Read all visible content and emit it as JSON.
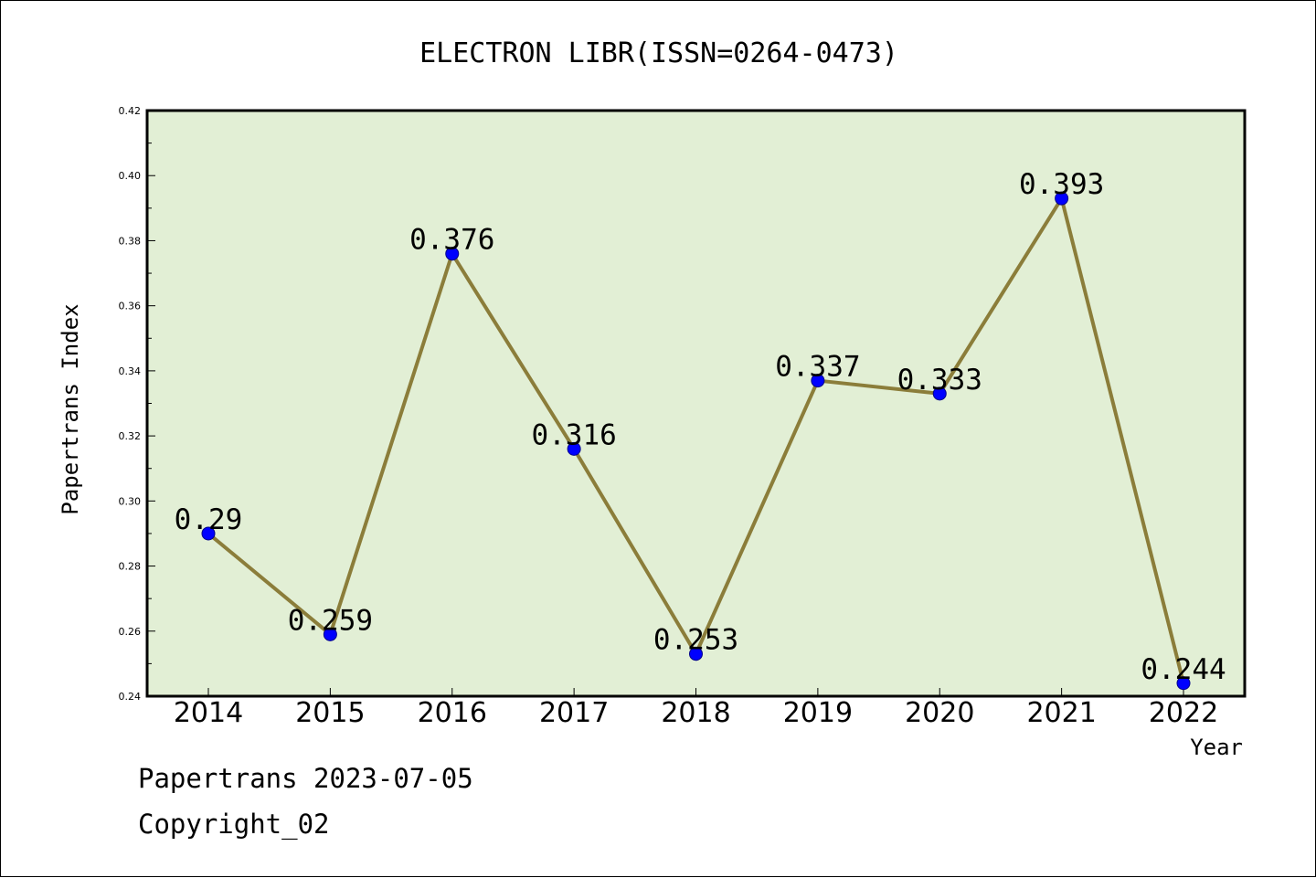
{
  "chart_data": {
    "type": "line",
    "title": "ELECTRON LIBR(ISSN=0264-0473)",
    "xlabel": "Year",
    "ylabel": "Papertrans Index",
    "categories": [
      "2014",
      "2015",
      "2016",
      "2017",
      "2018",
      "2019",
      "2020",
      "2021",
      "2022"
    ],
    "series": [
      {
        "values": [
          0.29,
          0.259,
          0.376,
          0.316,
          0.253,
          0.337,
          0.333,
          0.393,
          0.244
        ],
        "labels": [
          "0.29",
          "0.259",
          "0.376",
          "0.316",
          "0.253",
          "0.337",
          "0.333",
          "0.393",
          "0.244"
        ]
      }
    ],
    "ylim": [
      0.24,
      0.42
    ],
    "yticks": [
      "0.24",
      "0.26",
      "0.28",
      "0.30",
      "0.32",
      "0.34",
      "0.36",
      "0.38",
      "0.40",
      "0.42"
    ],
    "grid": false,
    "legend": "none",
    "colors": {
      "plot_background": "#e2efd5",
      "line": "#8b7d3a",
      "marker": "#0000ff"
    }
  },
  "footer": {
    "line1": "Papertrans 2023-07-05",
    "line2": "Copyright_02"
  }
}
